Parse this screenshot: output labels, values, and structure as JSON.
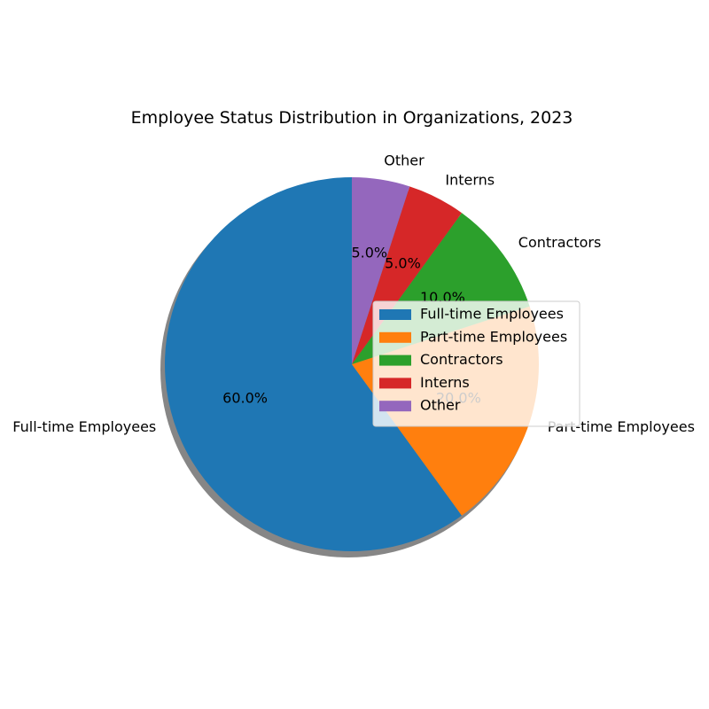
{
  "chart_data": {
    "type": "pie",
    "title": "Employee Status Distribution in Organizations, 2023",
    "labels": [
      "Full-time Employees",
      "Part-time Employees",
      "Contractors",
      "Interns",
      "Other"
    ],
    "values": [
      60,
      20,
      10,
      5,
      5
    ],
    "percent_labels": [
      "60.0%",
      "20.0%",
      "10.0%",
      "5.0%",
      "5.0%"
    ],
    "colors": [
      "#1f77b4",
      "#ff7f0e",
      "#2ca02c",
      "#d62728",
      "#9467bd"
    ],
    "start_angle_deg": 90,
    "direction": "counterclockwise",
    "shadow": true,
    "legend": {
      "placement": "center-right",
      "entries": [
        "Full-time Employees",
        "Part-time Employees",
        "Contractors",
        "Interns",
        "Other"
      ]
    }
  }
}
